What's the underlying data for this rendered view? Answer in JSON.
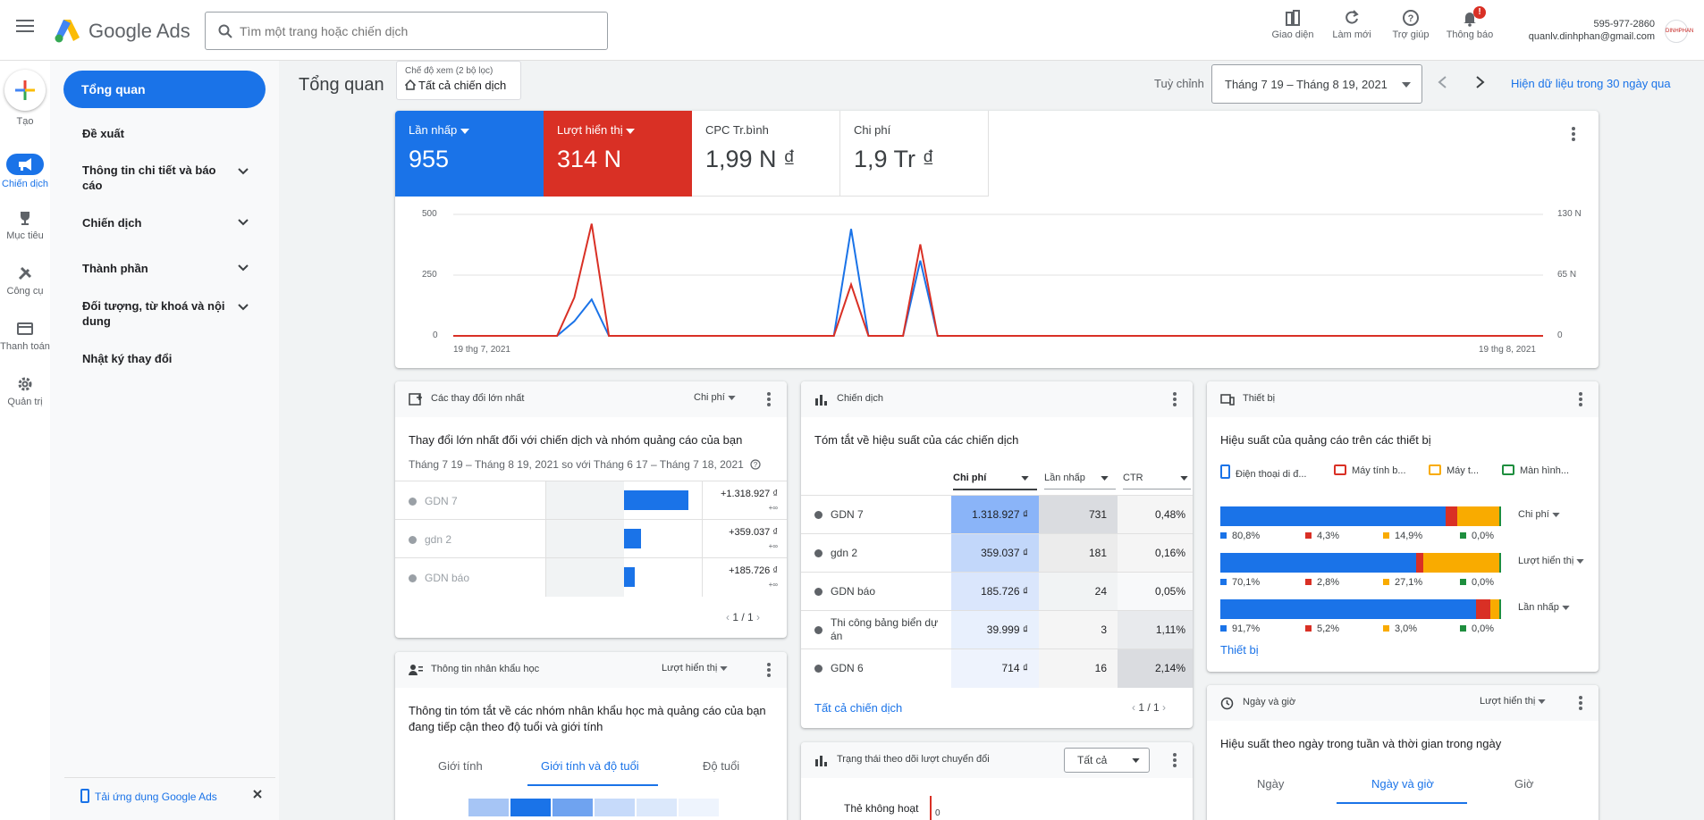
{
  "header": {
    "brand": "Google Ads",
    "search_placeholder": "Tìm một trang hoặc chiến dịch",
    "tools": [
      "Giao diện",
      "Làm mới",
      "Trợ giúp",
      "Thông báo"
    ],
    "notif_badge": "!",
    "account_phone": "595-977-2860",
    "account_email": "quanlv.dinhphan@gmail.com",
    "account_logo": "DINHPHAN"
  },
  "rail": {
    "create": "Tạo",
    "items": [
      "Chiến dịch",
      "Mục tiêu",
      "Công cụ",
      "Thanh toán",
      "Quản trị"
    ]
  },
  "sidenav": {
    "overview": "Tổng quan",
    "items": [
      "Đề xuất",
      "Thông tin chi tiết và báo cáo",
      "Chiến dịch",
      "Thành phần",
      "Đối tượng, từ khoá và nội dung",
      "Nhật ký thay đổi"
    ],
    "app_banner": "Tải ứng dụng Google Ads"
  },
  "main": {
    "title": "Tổng quan",
    "view_mode_label": "Chế độ xem (2 bộ lọc)",
    "view_mode_value": "Tất cả chiến dịch",
    "customize": "Tuỳ chỉnh",
    "date_range": "Tháng 7 19 – Tháng 8 19, 2021",
    "recent": "Hiện dữ liệu trong 30 ngày qua"
  },
  "kpis": [
    {
      "label": "Lần nhấp",
      "value": "955"
    },
    {
      "label": "Lượt hiển thị",
      "value": "314 N"
    },
    {
      "label": "CPC Tr.bình",
      "value": "1,99 N ₫"
    },
    {
      "label": "Chi phí",
      "value": "1,9 Tr ₫"
    }
  ],
  "colors": {
    "blue": "#1a73e8",
    "red": "#d93025",
    "yellow": "#f9ab00",
    "green": "#1e8e3e"
  },
  "chart_data": {
    "type": "line",
    "x_start_label": "19 thg 7, 2021",
    "x_end_label": "19 thg 8, 2021",
    "y_left_ticks": [
      "500",
      "250",
      "0"
    ],
    "y_right_ticks": [
      "130 N",
      "65 N",
      "0"
    ],
    "y_left_range": [
      0,
      500
    ],
    "y_right_range": [
      0,
      130000
    ],
    "series": [
      {
        "name": "Lần nhấp",
        "color": "#1a73e8",
        "axis": "left",
        "values": [
          0,
          0,
          0,
          0,
          0,
          0,
          0,
          60,
          150,
          0,
          0,
          0,
          0,
          0,
          0,
          0,
          0,
          0,
          0,
          0,
          0,
          0,
          0,
          440,
          0,
          0,
          0,
          310,
          0,
          0,
          0,
          0,
          0,
          0,
          0,
          0,
          0,
          0,
          0,
          0,
          0,
          0,
          0,
          0,
          0,
          0,
          0,
          0,
          0,
          0,
          0,
          0,
          0,
          0,
          0,
          0,
          0,
          0,
          0,
          0,
          0,
          0,
          0,
          0
        ]
      },
      {
        "name": "Lượt hiển thị",
        "color": "#d93025",
        "axis": "right",
        "values": [
          0,
          0,
          0,
          0,
          0,
          0,
          0,
          41000,
          120000,
          0,
          0,
          0,
          0,
          0,
          0,
          0,
          0,
          0,
          0,
          0,
          0,
          0,
          0,
          55000,
          0,
          0,
          0,
          98000,
          0,
          0,
          0,
          0,
          0,
          0,
          0,
          0,
          0,
          0,
          0,
          0,
          0,
          0,
          0,
          0,
          0,
          0,
          0,
          0,
          0,
          0,
          0,
          0,
          0,
          0,
          0,
          0,
          0,
          0,
          0,
          0,
          0,
          0,
          0,
          0
        ]
      }
    ]
  },
  "changes": {
    "title": "Các thay đổi lớn nhất",
    "metric": "Chi phí",
    "subtitle": "Thay đổi lớn nhất đối với chiến dịch và nhóm quảng cáo của bạn",
    "note": "Tháng 7 19 – Tháng 8 19, 2021 so với Tháng 6 17 – Tháng 7 18, 2021",
    "rows": [
      {
        "name": "GDN 7",
        "amount": "+1.318.927 ₫",
        "pct": "+∞",
        "share": 1.0
      },
      {
        "name": "gdn 2",
        "amount": "+359.037 ₫",
        "pct": "+∞",
        "share": 0.27
      },
      {
        "name": "GDN báo",
        "amount": "+185.726 ₫",
        "pct": "+∞",
        "share": 0.14
      }
    ],
    "pager": "1 / 1"
  },
  "campaigns": {
    "title": "Chiến dịch",
    "subtitle": "Tóm tắt về hiệu suất của các chiến dịch",
    "cols": [
      "Chi phí",
      "Lần nhấp",
      "CTR"
    ],
    "rows": [
      {
        "name": "GDN 7",
        "cost": "1.318.927 ₫",
        "clicks": "731",
        "ctr": "0,48%"
      },
      {
        "name": "gdn 2",
        "cost": "359.037 ₫",
        "clicks": "181",
        "ctr": "0,16%"
      },
      {
        "name": "GDN báo",
        "cost": "185.726 ₫",
        "clicks": "24",
        "ctr": "0,05%"
      },
      {
        "name": "Thi công bảng biển dự án",
        "cost": "39.999 ₫",
        "clicks": "3",
        "ctr": "1,11%"
      },
      {
        "name": "GDN 6",
        "cost": "714 ₫",
        "clicks": "16",
        "ctr": "2,14%"
      }
    ],
    "all_link": "Tất cả chiến dịch",
    "pager": "1 / 1"
  },
  "devices": {
    "title": "Thiết bị",
    "subtitle": "Hiệu suất của quảng cáo trên các thiết bị",
    "legend": [
      "Điện thoại di đ...",
      "Máy tính b...",
      "Máy t...",
      "Màn hình..."
    ],
    "rows": [
      {
        "metric": "Chi phí",
        "values": [
          80.8,
          4.3,
          14.9,
          0.0
        ],
        "labels": [
          "80,8%",
          "4,3%",
          "14,9%",
          "0,0%"
        ]
      },
      {
        "metric": "Lượt hiển thị",
        "values": [
          70.1,
          2.8,
          27.1,
          0.0
        ],
        "labels": [
          "70,1%",
          "2,8%",
          "27,1%",
          "0,0%"
        ]
      },
      {
        "metric": "Lần nhấp",
        "values": [
          91.7,
          5.2,
          3.0,
          0.0
        ],
        "labels": [
          "91,7%",
          "5,2%",
          "3,0%",
          "0,0%"
        ]
      }
    ],
    "link": "Thiết bị"
  },
  "demographics": {
    "title": "Thông tin nhân khẩu học",
    "metric": "Lượt hiển thị",
    "subtitle": "Thông tin tóm tắt về các nhóm nhân khẩu học mà quảng cáo của bạn đang tiếp cận theo độ tuổi và giới tính",
    "tabs": [
      "Giới tính",
      "Giới tính và độ tuổi",
      "Độ tuổi"
    ]
  },
  "conversion": {
    "title": "Trạng thái theo dõi lượt chuyển đổi",
    "filter": "Tất cả",
    "row_label": "Thẻ không hoạt",
    "value_label": "0"
  },
  "daytime": {
    "title": "Ngày và giờ",
    "metric": "Lượt hiển thị",
    "subtitle": "Hiệu suất theo ngày trong tuần và thời gian trong ngày",
    "tabs": [
      "Ngày",
      "Ngày và giờ",
      "Giờ"
    ]
  }
}
